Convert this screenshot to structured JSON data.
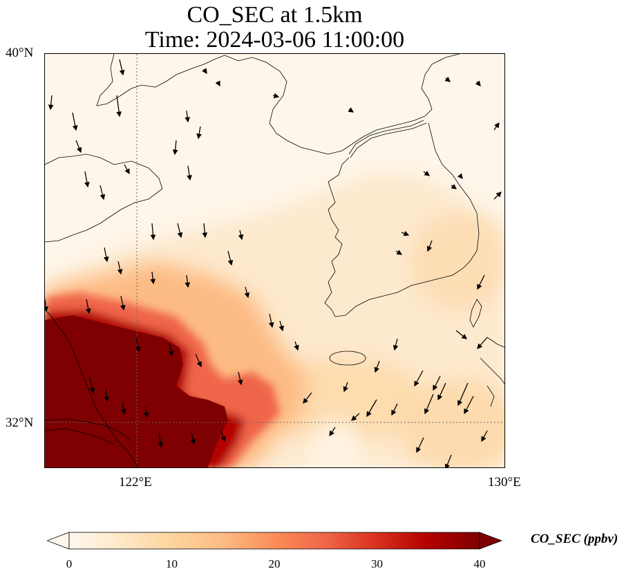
{
  "title": {
    "line1": "CO_SEC at 1.5km",
    "line2": "Time: 2024-03-06 11:00:00"
  },
  "map": {
    "extent": {
      "lon_min": 120.0,
      "lon_max": 130.0,
      "lat_min": 31.0,
      "lat_max": 40.0
    },
    "gridlines": {
      "lons": [
        122
      ],
      "lats": [
        32
      ],
      "style": "dotted"
    },
    "lat_ticks": [
      {
        "value": 40,
        "label": "40°N"
      },
      {
        "value": 32,
        "label": "32°N"
      }
    ],
    "lon_ticks": [
      {
        "value": 122,
        "label": "122°E"
      },
      {
        "value": 130,
        "label": "130°E"
      }
    ],
    "field": {
      "variable": "CO_SEC",
      "level": "1.5km",
      "units": "ppbv"
    }
  },
  "colorbar": {
    "label": "CO_SEC (ppbv)",
    "min": 0,
    "max": 40,
    "extend": "both",
    "colormap": "OrRd",
    "stops": [
      "#fff7ec",
      "#fee8c8",
      "#fdd49e",
      "#fdbb84",
      "#fc8d59",
      "#ef6548",
      "#d7301f",
      "#b30000",
      "#7f0000"
    ],
    "ticks": [
      {
        "value": 0,
        "label": "0"
      },
      {
        "value": 10,
        "label": "10"
      },
      {
        "value": 20,
        "label": "20"
      },
      {
        "value": 30,
        "label": "30"
      },
      {
        "value": 40,
        "label": "40"
      }
    ]
  }
}
